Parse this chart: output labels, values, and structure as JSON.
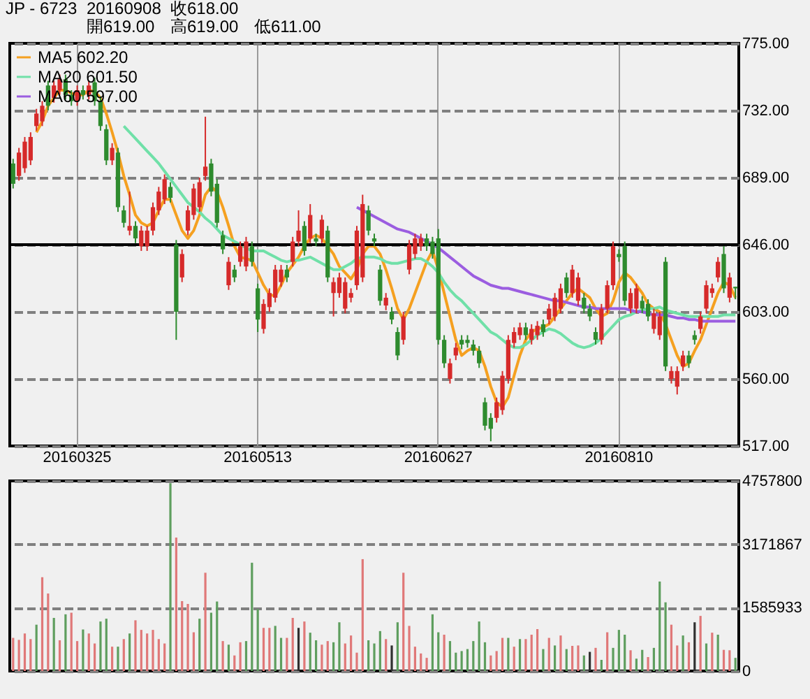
{
  "chart_data": [
    {
      "type": "candlestick",
      "title": "JP - 6723",
      "annotations": [
        "20160908",
        "收618.00",
        "開619.00",
        "高619.00",
        "低611.00"
      ],
      "categories": [
        null,
        null,
        null,
        null,
        null,
        null,
        null,
        null,
        null,
        null,
        null,
        "20160325",
        null,
        null,
        null,
        null,
        null,
        null,
        null,
        null,
        null,
        null,
        null,
        null,
        null,
        null,
        null,
        null,
        null,
        null,
        null,
        null,
        null,
        null,
        null,
        null,
        null,
        null,
        null,
        null,
        null,
        null,
        "20160513",
        null,
        null,
        null,
        null,
        null,
        null,
        null,
        null,
        null,
        null,
        null,
        null,
        null,
        null,
        null,
        null,
        null,
        null,
        null,
        null,
        null,
        null,
        null,
        null,
        null,
        null,
        null,
        null,
        null,
        null,
        "20160627",
        null,
        null,
        null,
        null,
        null,
        null,
        null,
        null,
        null,
        null,
        null,
        null,
        null,
        null,
        null,
        null,
        null,
        null,
        null,
        null,
        null,
        null,
        null,
        null,
        null,
        null,
        null,
        null,
        null,
        null,
        "20160810",
        null,
        null,
        null,
        null,
        null,
        null,
        null,
        null,
        null,
        null,
        null,
        null,
        null,
        null,
        null,
        null,
        null,
        null,
        null,
        null
      ],
      "ohlc": [
        [
          698,
          701,
          682,
          685
        ],
        [
          690,
          708,
          687,
          705
        ],
        [
          695,
          715,
          692,
          712
        ],
        [
          700,
          718,
          697,
          715
        ],
        [
          722,
          733,
          719,
          730
        ],
        [
          725,
          738,
          722,
          735
        ],
        [
          748,
          751,
          732,
          735
        ],
        [
          740,
          751,
          737,
          748
        ],
        [
          745,
          755,
          742,
          752
        ],
        [
          752,
          755,
          739,
          742
        ],
        [
          742,
          745,
          735,
          738
        ],
        [
          738,
          748,
          735,
          745
        ],
        [
          745,
          748,
          739,
          742
        ],
        [
          742,
          751,
          739,
          748
        ],
        [
          750,
          753,
          735,
          738
        ],
        [
          738,
          741,
          719,
          722
        ],
        [
          720,
          723,
          697,
          700
        ],
        [
          700,
          711,
          697,
          708
        ],
        [
          705,
          708,
          667,
          670
        ],
        [
          668,
          671,
          657,
          660
        ],
        [
          655,
          680,
          652,
          658
        ],
        [
          658,
          661,
          647,
          650
        ],
        [
          645,
          658,
          642,
          655
        ],
        [
          645,
          658,
          642,
          655
        ],
        [
          655,
          673,
          652,
          670
        ],
        [
          668,
          683,
          665,
          680
        ],
        [
          675,
          691,
          672,
          688
        ],
        [
          683,
          686,
          673,
          676
        ],
        [
          646,
          649,
          585,
          603
        ],
        [
          625,
          643,
          622,
          640
        ],
        [
          655,
          671,
          652,
          668
        ],
        [
          665,
          685,
          662,
          682
        ],
        [
          670,
          689,
          667,
          686
        ],
        [
          690,
          728,
          687,
          696
        ],
        [
          698,
          701,
          677,
          680
        ],
        [
          685,
          688,
          657,
          660
        ],
        [
          652,
          655,
          640,
          643
        ],
        [
          620,
          638,
          617,
          635
        ],
        [
          630,
          633,
          622,
          625
        ],
        [
          635,
          648,
          632,
          645
        ],
        [
          632,
          651,
          629,
          648
        ],
        [
          645,
          648,
          632,
          635
        ],
        [
          618,
          621,
          590,
          598
        ],
        [
          592,
          611,
          589,
          608
        ],
        [
          606,
          618,
          603,
          615
        ],
        [
          612,
          633,
          609,
          630
        ],
        [
          622,
          633,
          619,
          630
        ],
        [
          630,
          633,
          622,
          625
        ],
        [
          635,
          651,
          632,
          648
        ],
        [
          648,
          668,
          645,
          655
        ],
        [
          658,
          661,
          639,
          642
        ],
        [
          650,
          672,
          647,
          665
        ],
        [
          650,
          653,
          645,
          648
        ],
        [
          650,
          665,
          647,
          662
        ],
        [
          655,
          658,
          622,
          625
        ],
        [
          615,
          625,
          600,
          622
        ],
        [
          615,
          628,
          612,
          625
        ],
        [
          605,
          625,
          602,
          622
        ],
        [
          612,
          618,
          609,
          615
        ],
        [
          620,
          658,
          617,
          655
        ],
        [
          625,
          678,
          622,
          672
        ],
        [
          668,
          671,
          652,
          655
        ],
        [
          650,
          653,
          645,
          648
        ],
        [
          630,
          633,
          607,
          610
        ],
        [
          607,
          615,
          604,
          612
        ],
        [
          603,
          606,
          595,
          598
        ],
        [
          590,
          593,
          572,
          575
        ],
        [
          585,
          603,
          582,
          600
        ],
        [
          630,
          649,
          627,
          646
        ],
        [
          640,
          653,
          637,
          650
        ],
        [
          645,
          653,
          642,
          650
        ],
        [
          650,
          653,
          642,
          645
        ],
        [
          648,
          651,
          637,
          640
        ],
        [
          650,
          656,
          582,
          585
        ],
        [
          585,
          588,
          567,
          570
        ],
        [
          560,
          573,
          557,
          570
        ],
        [
          575,
          583,
          572,
          580
        ],
        [
          585,
          588,
          579,
          582
        ],
        [
          585,
          588,
          580,
          583
        ],
        [
          582,
          585,
          575,
          578
        ],
        [
          578,
          581,
          567,
          570
        ],
        [
          545,
          548,
          527,
          530
        ],
        [
          535,
          538,
          520,
          528
        ],
        [
          535,
          548,
          532,
          545
        ],
        [
          540,
          565,
          537,
          562
        ],
        [
          560,
          588,
          557,
          585
        ],
        [
          583,
          593,
          580,
          590
        ],
        [
          588,
          596,
          585,
          593
        ],
        [
          593,
          596,
          585,
          588
        ],
        [
          585,
          595,
          582,
          592
        ],
        [
          588,
          597,
          585,
          594
        ],
        [
          595,
          598,
          587,
          590
        ],
        [
          598,
          608,
          595,
          605
        ],
        [
          600,
          615,
          597,
          612
        ],
        [
          605,
          621,
          602,
          618
        ],
        [
          625,
          628,
          612,
          615
        ],
        [
          615,
          633,
          612,
          630
        ],
        [
          610,
          628,
          607,
          625
        ],
        [
          612,
          615,
          602,
          605
        ],
        [
          605,
          608,
          597,
          600
        ],
        [
          590,
          593,
          582,
          585
        ],
        [
          585,
          608,
          582,
          605
        ],
        [
          605,
          623,
          602,
          620
        ],
        [
          620,
          648,
          617,
          645
        ],
        [
          640,
          643,
          635,
          638
        ],
        [
          645,
          648,
          607,
          610
        ],
        [
          605,
          618,
          602,
          615
        ],
        [
          605,
          621,
          602,
          618
        ],
        [
          610,
          613,
          602,
          605
        ],
        [
          608,
          611,
          597,
          600
        ],
        [
          592,
          605,
          589,
          602
        ],
        [
          588,
          603,
          585,
          600
        ],
        [
          635,
          638,
          565,
          568
        ],
        [
          560,
          568,
          557,
          565
        ],
        [
          555,
          568,
          550,
          565
        ],
        [
          568,
          578,
          565,
          575
        ],
        [
          575,
          578,
          567,
          570
        ],
        [
          588,
          591,
          582,
          585
        ],
        [
          592,
          603,
          589,
          600
        ],
        [
          605,
          623,
          602,
          620
        ],
        [
          615,
          621,
          612,
          618
        ],
        [
          625,
          638,
          622,
          635
        ],
        [
          640,
          645,
          615,
          618
        ],
        [
          612,
          628,
          609,
          625
        ],
        [
          619,
          619,
          611,
          618
        ]
      ],
      "colors": [
        "#2e8b2e",
        "#d62a2a",
        "#d62a2a",
        "#d62a2a",
        "#d62a2a",
        "#d62a2a",
        "#2e8b2e",
        "#d62a2a",
        "#d62a2a",
        "#2e8b2e",
        "#2e8b2e",
        "#d62a2a",
        "#2e8b2e",
        "#d62a2a",
        "#2e8b2e",
        "#2e8b2e",
        "#2e8b2e",
        "#d62a2a",
        "#2e8b2e",
        "#2e8b2e",
        "#d62a2a",
        "#2e8b2e",
        "#d62a2a",
        "#d62a2a",
        "#d62a2a",
        "#d62a2a",
        "#d62a2a",
        "#2e8b2e",
        "#2e8b2e",
        "#d62a2a",
        "#d62a2a",
        "#d62a2a",
        "#d62a2a",
        "#d62a2a",
        "#2e8b2e",
        "#2e8b2e",
        "#2e8b2e",
        "#d62a2a",
        "#2e8b2e",
        "#d62a2a",
        "#d62a2a",
        "#2e8b2e",
        "#2e8b2e",
        "#d62a2a",
        "#d62a2a",
        "#d62a2a",
        "#d62a2a",
        "#2e8b2e",
        "#d62a2a",
        "#d62a2a",
        "#2e8b2e",
        "#d62a2a",
        "#2e8b2e",
        "#d62a2a",
        "#2e8b2e",
        "#d62a2a",
        "#d62a2a",
        "#d62a2a",
        "#d62a2a",
        "#d62a2a",
        "#d62a2a",
        "#2e8b2e",
        "#2e8b2e",
        "#2e8b2e",
        "#d62a2a",
        "#2e8b2e",
        "#2e8b2e",
        "#d62a2a",
        "#d62a2a",
        "#d62a2a",
        "#d62a2a",
        "#2e8b2e",
        "#2e8b2e",
        "#2e8b2e",
        "#2e8b2e",
        "#d62a2a",
        "#d62a2a",
        "#2e8b2e",
        "#2e8b2e",
        "#2e8b2e",
        "#2e8b2e",
        "#2e8b2e",
        "#2e8b2e",
        "#d62a2a",
        "#d62a2a",
        "#d62a2a",
        "#d62a2a",
        "#d62a2a",
        "#2e8b2e",
        "#d62a2a",
        "#d62a2a",
        "#2e8b2e",
        "#d62a2a",
        "#d62a2a",
        "#d62a2a",
        "#2e8b2e",
        "#d62a2a",
        "#d62a2a",
        "#2e8b2e",
        "#2e8b2e",
        "#2e8b2e",
        "#d62a2a",
        "#d62a2a",
        "#d62a2a",
        "#2e8b2e",
        "#2e8b2e",
        "#d62a2a",
        "#d62a2a",
        "#2e8b2e",
        "#2e8b2e",
        "#d62a2a",
        "#d62a2a",
        "#2e8b2e",
        "#d62a2a",
        "#d62a2a",
        "#d62a2a",
        "#2e8b2e",
        "#2e8b2e",
        "#d62a2a",
        "#d62a2a",
        "#d62a2a",
        "#d62a2a",
        "#2e8b2e",
        "#d62a2a",
        "#2e8b2e"
      ],
      "series": [
        {
          "name": "MA5 602.20",
          "type": "line",
          "color": "#f5a020",
          "values": [
            null,
            null,
            null,
            null,
            718,
            725,
            735,
            740,
            745,
            745,
            743,
            742,
            742,
            745,
            744,
            740,
            730,
            718,
            705,
            690,
            678,
            665,
            660,
            658,
            660,
            668,
            675,
            675,
            665,
            655,
            650,
            655,
            665,
            678,
            683,
            680,
            670,
            658,
            645,
            638,
            637,
            636,
            628,
            620,
            614,
            613,
            620,
            628,
            633,
            638,
            645,
            650,
            652,
            650,
            645,
            640,
            632,
            628,
            624,
            630,
            640,
            645,
            645,
            640,
            630,
            618,
            605,
            598,
            605,
            615,
            625,
            635,
            642,
            630,
            615,
            600,
            585,
            575,
            578,
            580,
            578,
            568,
            555,
            545,
            542,
            548,
            562,
            575,
            585,
            590,
            592,
            593,
            595,
            600,
            605,
            610,
            615,
            618,
            615,
            612,
            605,
            600,
            602,
            610,
            622,
            628,
            625,
            620,
            615,
            608,
            605,
            603,
            595,
            585,
            575,
            568,
            570,
            578,
            585,
            595,
            605,
            615,
            622,
            620,
            612
          ]
        },
        {
          "name": "MA20 601.50",
          "type": "line",
          "color": "#70e0a8",
          "values": [
            null,
            null,
            null,
            null,
            null,
            null,
            null,
            null,
            null,
            null,
            null,
            null,
            null,
            null,
            null,
            null,
            null,
            null,
            null,
            722,
            718,
            714,
            710,
            706,
            702,
            698,
            693,
            688,
            683,
            678,
            673,
            670,
            667,
            663,
            660,
            656,
            652,
            650,
            648,
            646,
            644,
            642,
            642,
            642,
            640,
            638,
            636,
            635,
            636,
            636,
            637,
            638,
            636,
            634,
            632,
            630,
            630,
            632,
            634,
            637,
            638,
            638,
            638,
            637,
            635,
            634,
            634,
            635,
            636,
            637,
            637,
            635,
            632,
            628,
            622,
            617,
            613,
            610,
            606,
            602,
            598,
            594,
            590,
            588,
            585,
            582,
            580,
            580,
            582,
            585,
            588,
            590,
            592,
            591,
            589,
            586,
            583,
            581,
            580,
            581,
            583,
            586,
            590,
            594,
            598,
            600,
            601,
            603,
            604,
            605,
            605,
            606,
            604,
            603,
            602,
            601,
            600,
            600,
            600,
            600,
            600,
            600,
            601,
            601,
            601
          ]
        },
        {
          "name": "MA60 597.00",
          "type": "line",
          "color": "#9b5de0",
          "values": [
            null,
            null,
            null,
            null,
            null,
            null,
            null,
            null,
            null,
            null,
            null,
            null,
            null,
            null,
            null,
            null,
            null,
            null,
            null,
            null,
            null,
            null,
            null,
            null,
            null,
            null,
            null,
            null,
            null,
            null,
            null,
            null,
            null,
            null,
            null,
            null,
            null,
            null,
            null,
            null,
            null,
            null,
            null,
            null,
            null,
            null,
            null,
            null,
            null,
            null,
            null,
            null,
            null,
            null,
            null,
            null,
            null,
            null,
            null,
            670,
            668,
            666,
            664,
            662,
            660,
            658,
            656,
            655,
            654,
            652,
            650,
            648,
            646,
            644,
            641,
            638,
            635,
            632,
            629,
            626,
            624,
            622,
            620,
            619,
            618,
            618,
            617,
            616,
            615,
            614,
            613,
            612,
            611,
            610,
            610,
            609,
            608,
            607,
            606,
            606,
            605,
            605,
            605,
            605,
            605,
            605,
            604,
            603,
            603,
            602,
            601,
            601,
            601,
            600,
            599,
            599,
            598,
            598,
            597,
            597,
            597,
            597,
            597,
            597,
            597
          ]
        }
      ],
      "ylim": [
        517,
        775
      ],
      "yticks": [
        {
          "value": 517,
          "label": "517.00"
        },
        {
          "value": 560,
          "label": "560.00"
        },
        {
          "value": 603,
          "label": "603.00"
        },
        {
          "value": 646,
          "label": "646.00"
        },
        {
          "value": 689,
          "label": "689.00"
        },
        {
          "value": 732,
          "label": "732.00"
        },
        {
          "value": 775,
          "label": "775.00"
        }
      ],
      "ref_lines": [
        {
          "axis": "y",
          "value": 646,
          "color": "#000000"
        }
      ],
      "grid": true,
      "legend": "top left"
    },
    {
      "type": "bar",
      "tick_labels": "y",
      "categories": [
        null,
        null,
        null,
        null,
        null,
        null,
        null,
        null,
        null,
        null,
        null,
        "20160325",
        null,
        null,
        null,
        null,
        null,
        null,
        null,
        null,
        null,
        null,
        null,
        null,
        null,
        null,
        null,
        null,
        null,
        null,
        null,
        null,
        null,
        null,
        null,
        null,
        null,
        null,
        null,
        null,
        null,
        null,
        "20160513",
        null,
        null,
        null,
        null,
        null,
        null,
        null,
        null,
        null,
        null,
        null,
        null,
        null,
        null,
        null,
        null,
        null,
        null,
        null,
        null,
        null,
        null,
        null,
        null,
        null,
        null,
        null,
        null,
        null,
        null,
        "20160627",
        null,
        null,
        null,
        null,
        null,
        null,
        null,
        null,
        null,
        null,
        null,
        null,
        null,
        null,
        null,
        null,
        null,
        null,
        null,
        null,
        null,
        null,
        null,
        null,
        null,
        null,
        null,
        null,
        null,
        null,
        "20160810",
        null,
        null,
        null,
        null,
        null,
        null,
        null,
        null,
        null,
        null,
        null,
        null,
        null,
        null,
        null,
        null,
        null,
        null,
        null,
        null
      ],
      "values": [
        830000,
        780000,
        940000,
        800000,
        1160000,
        2350000,
        1940000,
        1330000,
        770000,
        1420000,
        1460000,
        750000,
        1040000,
        940000,
        690000,
        1240000,
        1310000,
        610000,
        610000,
        800000,
        940000,
        1270000,
        1030000,
        940000,
        1030000,
        800000,
        690000,
        4700000,
        3340000,
        1750000,
        1680000,
        970000,
        1310000,
        2460000,
        1460000,
        1740000,
        750000,
        660000,
        390000,
        720000,
        750000,
        2710000,
        1550000,
        1080000,
        1080000,
        1130000,
        830000,
        830000,
        1330000,
        1080000,
        1240000,
        960000,
        770000,
        660000,
        750000,
        720000,
        1220000,
        690000,
        890000,
        460000,
        2800000,
        770000,
        690000,
        1000000,
        800000,
        640000,
        1220000,
        2460000,
        1130000,
        610000,
        440000,
        330000,
        1420000,
        970000,
        910000,
        750000,
        460000,
        500000,
        550000,
        750000,
        1240000,
        720000,
        390000,
        500000,
        830000,
        830000,
        610000,
        800000,
        800000,
        910000,
        1050000,
        550000,
        830000,
        640000,
        890000,
        550000,
        630000,
        640000,
        390000,
        480000,
        580000,
        280000,
        970000,
        580000,
        1030000,
        910000,
        520000,
        310000,
        530000,
        350000,
        580000,
        2240000,
        1720000,
        1160000,
        640000,
        890000,
        720000,
        1220000,
        1380000,
        690000,
        960000,
        910000,
        530000,
        520000,
        330000
      ],
      "colors": [
        "#e07878",
        "#e07878",
        "#e07878",
        "#e07878",
        "#5e9e5e",
        "#e07878",
        "#e07878",
        "#5e9e5e",
        "#e07878",
        "#5e9e5e",
        "#e07878",
        "#e07878",
        "#5e9e5e",
        "#e07878",
        "#e07878",
        "#5e9e5e",
        "#5e9e5e",
        "#e07878",
        "#5e9e5e",
        "#e07878",
        "#5e9e5e",
        "#e07878",
        "#e07878",
        "#e07878",
        "#e07878",
        "#e07878",
        "#e07878",
        "#5e9e5e",
        "#e07878",
        "#e07878",
        "#e07878",
        "#e07878",
        "#5e9e5e",
        "#e07878",
        "#5e9e5e",
        "#5e9e5e",
        "#e07878",
        "#5e9e5e",
        "#e07878",
        "#e07878",
        "#5e9e5e",
        "#5e9e5e",
        "#5e9e5e",
        "#e07878",
        "#e07878",
        "#5e9e5e",
        "#5e9e5e",
        "#e07878",
        "#e07878",
        "#303030",
        "#e07878",
        "#5e9e5e",
        "#5e9e5e",
        "#e07878",
        "#e07878",
        "#5e9e5e",
        "#5e9e5e",
        "#e07878",
        "#e07878",
        "#e07878",
        "#e07878",
        "#5e9e5e",
        "#5e9e5e",
        "#5e9e5e",
        "#e07878",
        "#303030",
        "#5e9e5e",
        "#e07878",
        "#e07878",
        "#e07878",
        "#e07878",
        "#e07878",
        "#5e9e5e",
        "#5e9e5e",
        "#e07878",
        "#5e9e5e",
        "#5e9e5e",
        "#5e9e5e",
        "#5e9e5e",
        "#5e9e5e",
        "#5e9e5e",
        "#5e9e5e",
        "#e07878",
        "#e07878",
        "#e07878",
        "#5e9e5e",
        "#e07878",
        "#5e9e5e",
        "#e07878",
        "#e07878",
        "#e07878",
        "#5e9e5e",
        "#e07878",
        "#5e9e5e",
        "#e07878",
        "#5e9e5e",
        "#e07878",
        "#e07878",
        "#5e9e5e",
        "#303030",
        "#e07878",
        "#5e9e5e",
        "#e07878",
        "#5e9e5e",
        "#5e9e5e",
        "#5e9e5e",
        "#e07878",
        "#5e9e5e",
        "#5e9e5e",
        "#e07878",
        "#5e9e5e",
        "#5e9e5e",
        "#5e9e5e",
        "#e07878",
        "#e07878",
        "#5e9e5e",
        "#e07878",
        "#303030",
        "#e07878",
        "#5e9e5e",
        "#e07878",
        "#5e9e5e",
        "#e07878",
        "#e07878",
        "#5e9e5e"
      ],
      "ylim": [
        0,
        4757800
      ],
      "yticks": [
        0,
        1585933,
        3171867,
        4757800
      ],
      "grid": "y"
    }
  ]
}
